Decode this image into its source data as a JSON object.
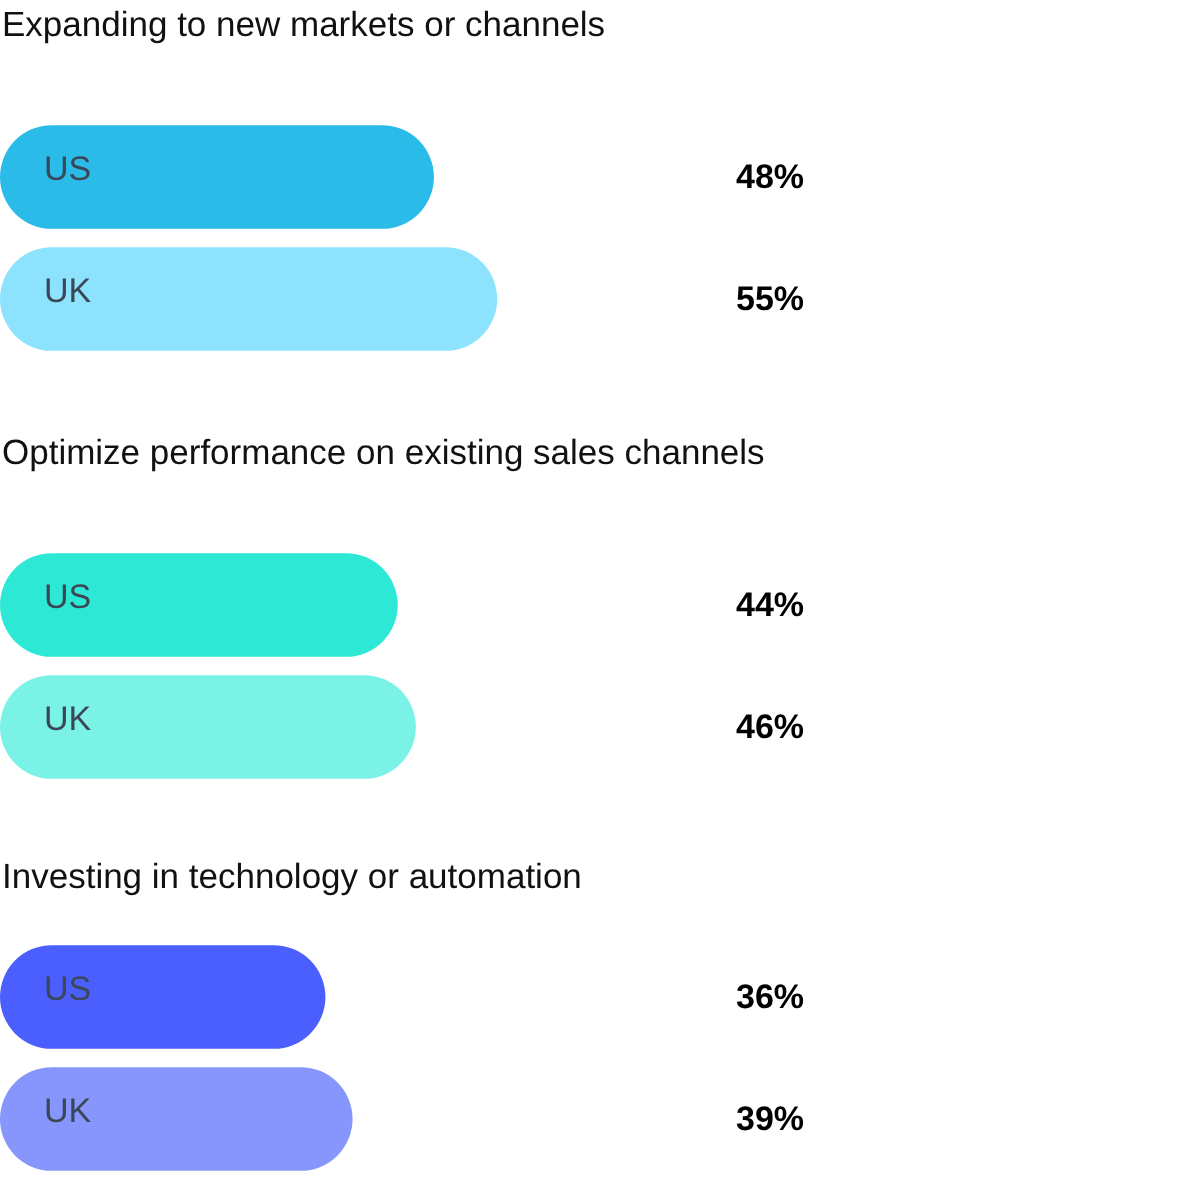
{
  "chart_data": [
    {
      "type": "bar",
      "title": "Expanding to new markets or channels",
      "orientation": "horizontal",
      "categories": [
        "US",
        "UK"
      ],
      "values": [
        48,
        55
      ],
      "colors": [
        "#2bbbe9",
        "#8de3fe"
      ],
      "value_labels": [
        "48%",
        "55%"
      ],
      "tick_labels": false,
      "grid": false
    },
    {
      "type": "bar",
      "title": "Optimize performance on existing sales channels",
      "orientation": "horizontal",
      "categories": [
        "US",
        "UK"
      ],
      "values": [
        44,
        46
      ],
      "colors": [
        "#2ee8d6",
        "#7af2e6"
      ],
      "value_labels": [
        "44%",
        "46%"
      ],
      "tick_labels": false,
      "grid": false
    },
    {
      "type": "bar",
      "title": "Investing in technology or automation",
      "orientation": "horizontal",
      "categories": [
        "US",
        "UK"
      ],
      "values": [
        36,
        39
      ],
      "colors": [
        "#4a5ffd",
        "#8696fc"
      ],
      "value_labels": [
        "36%",
        "39%"
      ],
      "tick_labels": false,
      "grid": false
    }
  ]
}
